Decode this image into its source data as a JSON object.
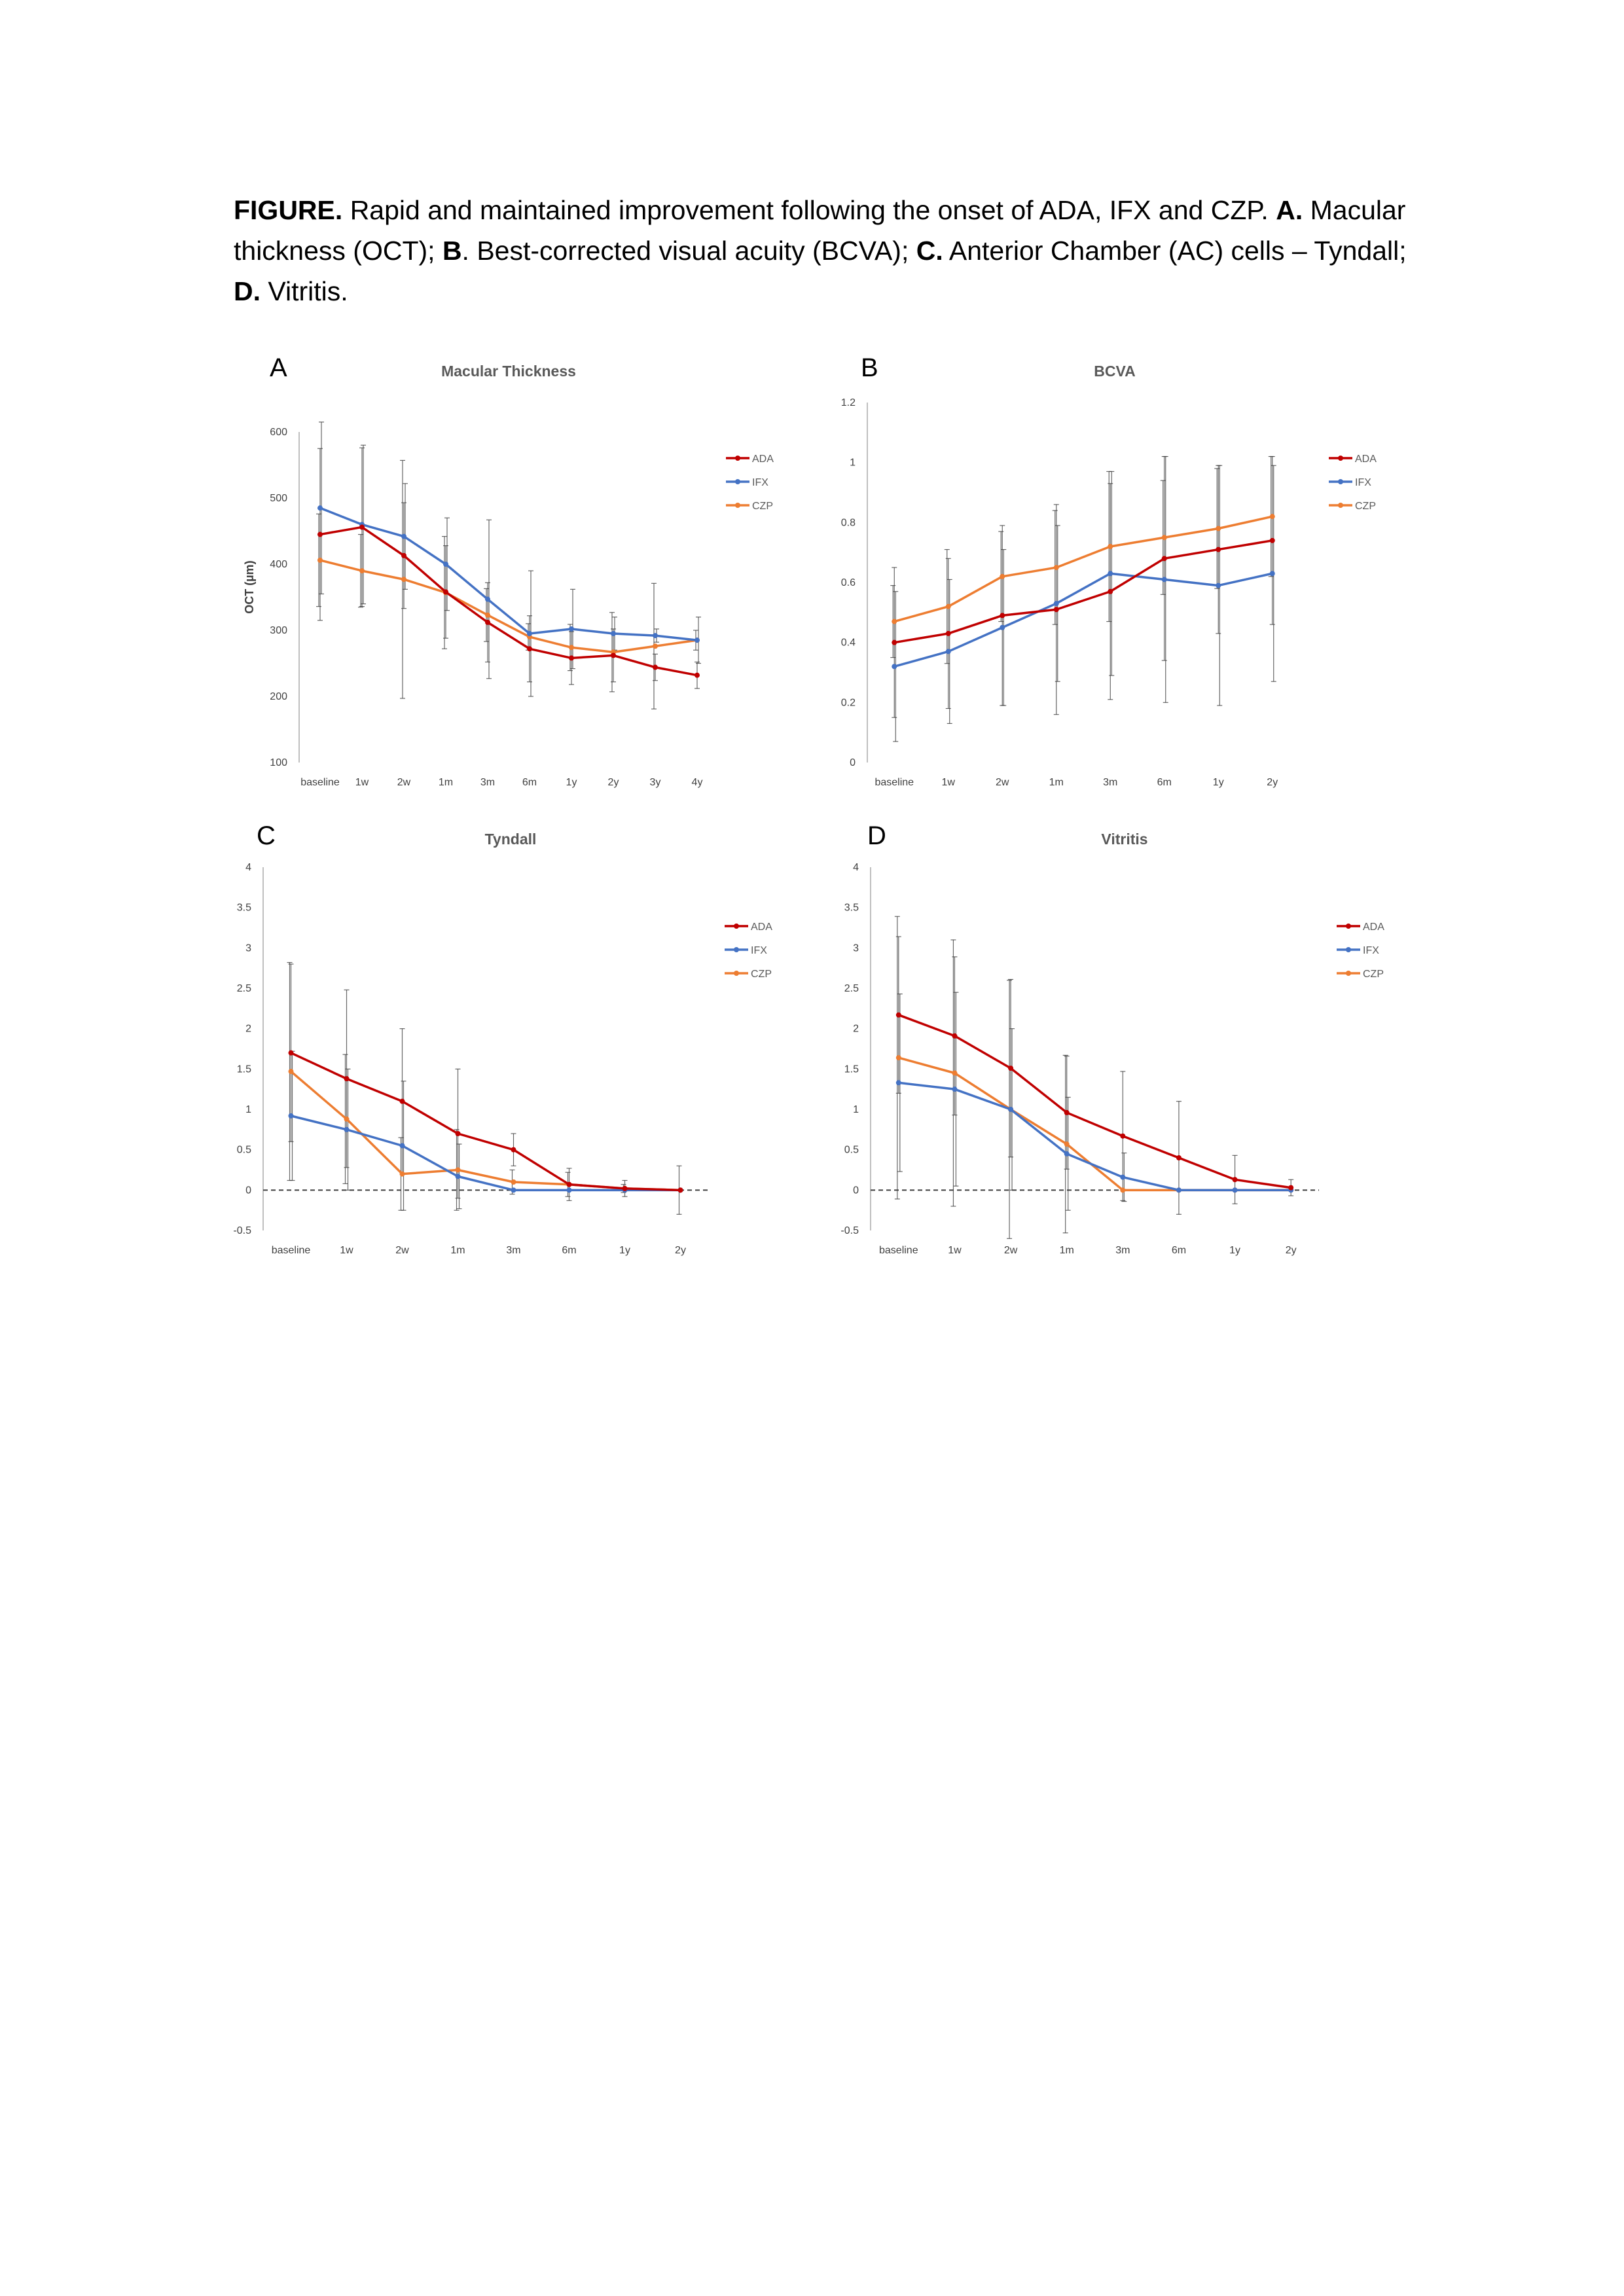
{
  "caption": {
    "prefix": "FIGURE.",
    "text1": " Rapid and maintained improvement following the onset of ADA, IFX and CZP. ",
    "a_label": "A.",
    "text2": " Macular thickness (OCT); ",
    "b_label": "B",
    "text3": ". Best-corrected visual acuity (BCVA); ",
    "c_label": "C.",
    "text4": " Anterior Chamber (AC) cells – Tyndall; ",
    "d_label": "D.",
    "text5": " Vitritis."
  },
  "colors": {
    "ADA": "#C00000",
    "IFX": "#4472C4",
    "CZP": "#ED7D31",
    "axis": "#BFBFBF",
    "error_bar": "#404040"
  },
  "chart_data": [
    {
      "id": "A",
      "panel_letter": "A",
      "type": "line",
      "title": "Macular Thickness",
      "ylabel": "OCT (µm)",
      "xlabel": "",
      "categories": [
        "baseline",
        "1w",
        "2w",
        "1m",
        "3m",
        "6m",
        "1y",
        "2y",
        "3y",
        "4y"
      ],
      "ylim": [
        100,
        600
      ],
      "yticks": [
        "100",
        "200",
        "300",
        "400",
        "500",
        "600"
      ],
      "grid": false,
      "error_bars": true,
      "legend_position": "right",
      "series": [
        {
          "name": "ADA",
          "values": [
            445,
            456,
            413,
            358,
            312,
            272,
            258,
            262,
            244,
            232
          ],
          "err": [
            130,
            120,
            80,
            70,
            60,
            50,
            40,
            40,
            20,
            20
          ]
        },
        {
          "name": "IFX",
          "values": [
            485,
            460,
            442,
            400,
            347,
            295,
            302,
            295,
            292,
            285
          ],
          "err": [
            130,
            120,
            80,
            70,
            120,
            95,
            60,
            25,
            10,
            35
          ]
        },
        {
          "name": "CZP",
          "values": [
            406,
            390,
            377,
            357,
            323,
            290,
            274,
            267,
            276,
            285
          ],
          "err": [
            70,
            55,
            180,
            85,
            40,
            20,
            35,
            60,
            95,
            15
          ]
        }
      ]
    },
    {
      "id": "B",
      "panel_letter": "B",
      "type": "line",
      "title": "BCVA",
      "ylabel": "",
      "xlabel": "",
      "categories": [
        "baseline",
        "1w",
        "2w",
        "1m",
        "3m",
        "6m",
        "1y",
        "2y"
      ],
      "ylim": [
        0,
        1.2
      ],
      "yticks": [
        "0",
        "0.2",
        "0.4",
        "0.6",
        "0.8",
        "1",
        "1.2"
      ],
      "grid": false,
      "error_bars": true,
      "legend_position": "right",
      "series": [
        {
          "name": "ADA",
          "values": [
            0.4,
            0.43,
            0.49,
            0.51,
            0.57,
            0.68,
            0.71,
            0.74
          ],
          "err": [
            0.25,
            0.25,
            0.3,
            0.35,
            0.36,
            0.34,
            0.28,
            0.28
          ]
        },
        {
          "name": "IFX",
          "values": [
            0.32,
            0.37,
            0.45,
            0.53,
            0.63,
            0.61,
            0.59,
            0.63
          ],
          "err": [
            0.25,
            0.24,
            0.26,
            0.26,
            0.34,
            0.41,
            0.4,
            0.36
          ]
        },
        {
          "name": "CZP",
          "values": [
            0.47,
            0.52,
            0.62,
            0.65,
            0.72,
            0.75,
            0.78,
            0.82
          ],
          "err": [
            0.12,
            0.19,
            0.15,
            0.19,
            0.25,
            0.19,
            0.2,
            0.2
          ]
        }
      ]
    },
    {
      "id": "C",
      "panel_letter": "C",
      "type": "line",
      "title": "Tyndall",
      "ylabel": "",
      "xlabel": "",
      "categories": [
        "baseline",
        "1w",
        "2w",
        "1m",
        "3m",
        "6m",
        "1y",
        "2y"
      ],
      "ylim": [
        -0.5,
        4
      ],
      "yticks": [
        "-0.5",
        "0",
        "0.5",
        "1",
        "1.5",
        "2",
        "2.5",
        "3",
        "3.5",
        "4"
      ],
      "grid": false,
      "error_bars": true,
      "zero_line": true,
      "legend_position": "right",
      "series": [
        {
          "name": "ADA",
          "values": [
            1.7,
            1.38,
            1.1,
            0.7,
            0.5,
            0.07,
            0.02,
            0
          ],
          "err": [
            1.1,
            1.1,
            0.9,
            0.8,
            0.2,
            0.2,
            0.1,
            0
          ]
        },
        {
          "name": "IFX",
          "values": [
            0.92,
            0.75,
            0.55,
            0.17,
            0,
            0,
            0,
            0
          ],
          "err": [
            0.8,
            0.75,
            0.8,
            0.4,
            0,
            0,
            0,
            0
          ]
        },
        {
          "name": "CZP",
          "values": [
            1.47,
            0.88,
            0.2,
            0.25,
            0.1,
            0.07,
            0.02,
            0
          ],
          "err": [
            1.35,
            0.8,
            0.45,
            0.5,
            0.15,
            0.15,
            0.05,
            0.3
          ]
        }
      ]
    },
    {
      "id": "D",
      "panel_letter": "D",
      "type": "line",
      "title": "Vitritis",
      "ylabel": "",
      "xlabel": "",
      "categories": [
        "baseline",
        "1w",
        "2w",
        "1m",
        "3m",
        "6m",
        "1y",
        "2y"
      ],
      "ylim": [
        -0.5,
        4
      ],
      "yticks": [
        "-0.5",
        "0",
        "0.5",
        "1",
        "1.5",
        "2",
        "2.5",
        "3",
        "3.5",
        "4"
      ],
      "grid": false,
      "error_bars": true,
      "zero_line": true,
      "legend_position": "right",
      "series": [
        {
          "name": "ADA",
          "values": [
            2.17,
            1.91,
            1.51,
            0.96,
            0.67,
            0.4,
            0.13,
            0.03
          ],
          "err": [
            0.97,
            0.98,
            1.1,
            0.7,
            0.8,
            0.7,
            0.3,
            0.1
          ]
        },
        {
          "name": "IFX",
          "values": [
            1.33,
            1.25,
            1.0,
            0.45,
            0.16,
            0,
            0,
            0
          ],
          "err": [
            1.1,
            1.2,
            1.0,
            0.7,
            0.3,
            0,
            0,
            0
          ]
        },
        {
          "name": "CZP",
          "values": [
            1.64,
            1.45,
            1.0,
            0.57,
            0,
            0,
            0,
            0
          ],
          "err": [
            1.75,
            1.65,
            1.6,
            1.1,
            0,
            0,
            0,
            0
          ]
        }
      ]
    }
  ]
}
